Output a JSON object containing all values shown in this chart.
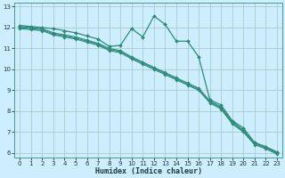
{
  "xlabel": "Humidex (Indice chaleur)",
  "bg_color": "#cceeff",
  "grid_color": "#aacccc",
  "line_color": "#2e8b7a",
  "xlim": [
    -0.5,
    23.5
  ],
  "ylim": [
    5.8,
    13.2
  ],
  "yticks": [
    6,
    7,
    8,
    9,
    10,
    11,
    12,
    13
  ],
  "xticks": [
    0,
    1,
    2,
    3,
    4,
    5,
    6,
    7,
    8,
    9,
    10,
    11,
    12,
    13,
    14,
    15,
    16,
    17,
    18,
    19,
    20,
    21,
    22,
    23
  ],
  "series1_x": [
    0,
    1,
    2,
    3,
    4,
    5,
    6,
    7,
    8,
    9,
    10,
    11,
    12,
    13,
    14,
    15,
    16,
    17,
    18,
    19,
    20,
    21,
    22,
    23
  ],
  "series1_y": [
    12.1,
    12.05,
    12.0,
    11.95,
    11.85,
    11.75,
    11.6,
    11.45,
    11.1,
    11.15,
    11.95,
    11.55,
    12.55,
    12.15,
    11.35,
    11.35,
    10.6,
    8.55,
    8.3,
    7.55,
    7.2,
    6.5,
    6.3,
    6.05
  ],
  "series2_x": [
    0,
    1,
    2,
    3,
    4,
    5,
    6,
    7,
    8,
    9,
    10,
    11,
    12,
    13,
    14,
    15,
    16,
    17,
    18,
    19,
    20,
    21,
    22,
    23
  ],
  "series2_y": [
    12.05,
    12.0,
    11.95,
    11.75,
    11.65,
    11.55,
    11.4,
    11.25,
    11.0,
    10.9,
    10.6,
    10.35,
    10.1,
    9.85,
    9.6,
    9.35,
    9.1,
    8.5,
    8.2,
    7.5,
    7.1,
    6.5,
    6.3,
    6.05
  ],
  "series3_x": [
    0,
    1,
    2,
    3,
    4,
    5,
    6,
    7,
    8,
    9,
    10,
    11,
    12,
    13,
    14,
    15,
    16,
    17,
    18,
    19,
    20,
    21,
    22,
    23
  ],
  "series3_y": [
    12.0,
    11.95,
    11.9,
    11.7,
    11.6,
    11.5,
    11.35,
    11.2,
    10.95,
    10.85,
    10.55,
    10.3,
    10.05,
    9.8,
    9.55,
    9.3,
    9.05,
    8.45,
    8.15,
    7.45,
    7.05,
    6.45,
    6.25,
    6.0
  ],
  "series4_x": [
    0,
    1,
    2,
    3,
    4,
    5,
    6,
    7,
    8,
    9,
    10,
    11,
    12,
    13,
    14,
    15,
    16,
    17,
    18,
    19,
    20,
    21,
    22,
    23
  ],
  "series4_y": [
    11.95,
    11.9,
    11.85,
    11.65,
    11.55,
    11.45,
    11.3,
    11.15,
    10.9,
    10.8,
    10.5,
    10.25,
    10.0,
    9.75,
    9.5,
    9.25,
    9.0,
    8.4,
    8.1,
    7.4,
    7.0,
    6.4,
    6.2,
    5.95
  ]
}
